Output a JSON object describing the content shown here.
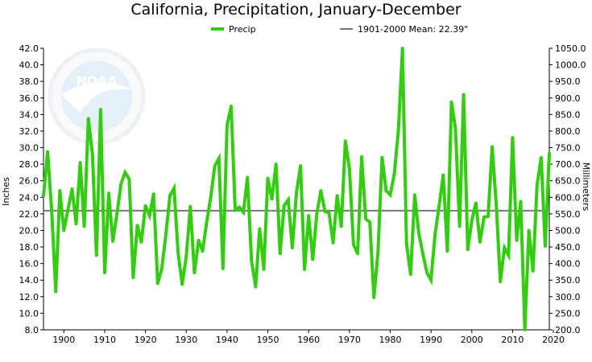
{
  "chart_data": {
    "type": "line",
    "title": "California, Precipitation, January-December",
    "ylabel": "Inches",
    "y2label": "Millimeters",
    "xlabel": "",
    "xlim": [
      1895,
      2019
    ],
    "ylim": [
      8.0,
      42.0
    ],
    "y2lim": [
      200.0,
      1050.0
    ],
    "x_ticks": [
      "1900",
      "1910",
      "1920",
      "1930",
      "1940",
      "1950",
      "1960",
      "1970",
      "1980",
      "1990",
      "2000",
      "2010",
      "2020"
    ],
    "y_ticks": [
      "8.0",
      "10.0",
      "12.0",
      "14.0",
      "16.0",
      "18.0",
      "20.0",
      "22.0",
      "24.0",
      "26.0",
      "28.0",
      "30.0",
      "32.0",
      "34.0",
      "36.0",
      "38.0",
      "40.0",
      "42.0"
    ],
    "y2_ticks": [
      "200.0",
      "250.0",
      "300.0",
      "350.0",
      "400.0",
      "450.0",
      "500.0",
      "550.0",
      "600.0",
      "650.0",
      "700.0",
      "750.0",
      "800.0",
      "850.0",
      "900.0",
      "950.0",
      "1000.0",
      "1050.0"
    ],
    "grid": false,
    "legend_position": "top",
    "series": [
      {
        "name": "Precip",
        "color": "#33cc11",
        "x": [
          1895,
          1896,
          1897,
          1898,
          1899,
          1900,
          1901,
          1902,
          1903,
          1904,
          1905,
          1906,
          1907,
          1908,
          1909,
          1910,
          1911,
          1912,
          1913,
          1914,
          1915,
          1916,
          1917,
          1918,
          1919,
          1920,
          1921,
          1922,
          1923,
          1924,
          1925,
          1926,
          1927,
          1928,
          1929,
          1930,
          1931,
          1932,
          1933,
          1934,
          1935,
          1936,
          1937,
          1938,
          1939,
          1940,
          1941,
          1942,
          1943,
          1944,
          1945,
          1946,
          1947,
          1948,
          1949,
          1950,
          1951,
          1952,
          1953,
          1954,
          1955,
          1956,
          1957,
          1958,
          1959,
          1960,
          1961,
          1962,
          1963,
          1964,
          1965,
          1966,
          1967,
          1968,
          1969,
          1970,
          1971,
          1972,
          1973,
          1974,
          1975,
          1976,
          1977,
          1978,
          1979,
          1980,
          1981,
          1982,
          1983,
          1984,
          1985,
          1986,
          1987,
          1988,
          1989,
          1990,
          1991,
          1992,
          1993,
          1994,
          1995,
          1996,
          1997,
          1998,
          1999,
          2000,
          2001,
          2002,
          2003,
          2004,
          2005,
          2006,
          2007,
          2008,
          2009,
          2010,
          2011,
          2012,
          2013,
          2014,
          2015,
          2016,
          2017,
          2018,
          2019
        ],
        "values": [
          24.2,
          29.5,
          22.5,
          12.6,
          24.8,
          20.0,
          22.5,
          25.0,
          20.8,
          28.2,
          20.5,
          33.5,
          29.2,
          17.0,
          34.6,
          14.9,
          24.5,
          18.7,
          22.0,
          25.6,
          27.0,
          26.2,
          14.3,
          20.6,
          18.6,
          23.0,
          21.8,
          24.4,
          13.6,
          15.4,
          19.5,
          24.2,
          25.1,
          17.3,
          13.5,
          16.9,
          22.9,
          14.9,
          18.8,
          17.5,
          21.0,
          24.0,
          27.8,
          28.7,
          15.4,
          32.7,
          35.0,
          22.5,
          22.8,
          22.2,
          26.4,
          16.3,
          13.2,
          20.2,
          15.3,
          26.3,
          23.8,
          28.0,
          17.2,
          23.0,
          23.7,
          17.9,
          24.5,
          27.8,
          15.3,
          21.8,
          16.5,
          22.0,
          24.8,
          22.3,
          22.1,
          18.5,
          24.2,
          20.5,
          30.8,
          27.5,
          18.3,
          17.2,
          28.9,
          21.4,
          21.0,
          11.9,
          17.4,
          28.8,
          24.8,
          24.3,
          26.8,
          32.0,
          42.6,
          18.4,
          14.7,
          24.3,
          19.7,
          17.2,
          14.9,
          14.0,
          19.6,
          23.0,
          26.7,
          17.5,
          35.5,
          32.3,
          20.5,
          36.4,
          17.7,
          21.2,
          23.3,
          18.6,
          21.6,
          21.7,
          30.1,
          23.0,
          13.8,
          17.9,
          17.0,
          31.2,
          18.8,
          23.5,
          7.7,
          20.0,
          15.1,
          25.5,
          28.8,
          18.1,
          29.3
        ]
      },
      {
        "name": "1901-2000 Mean: 22.39\"",
        "color": "#777777",
        "mean_value": 22.39
      }
    ]
  }
}
